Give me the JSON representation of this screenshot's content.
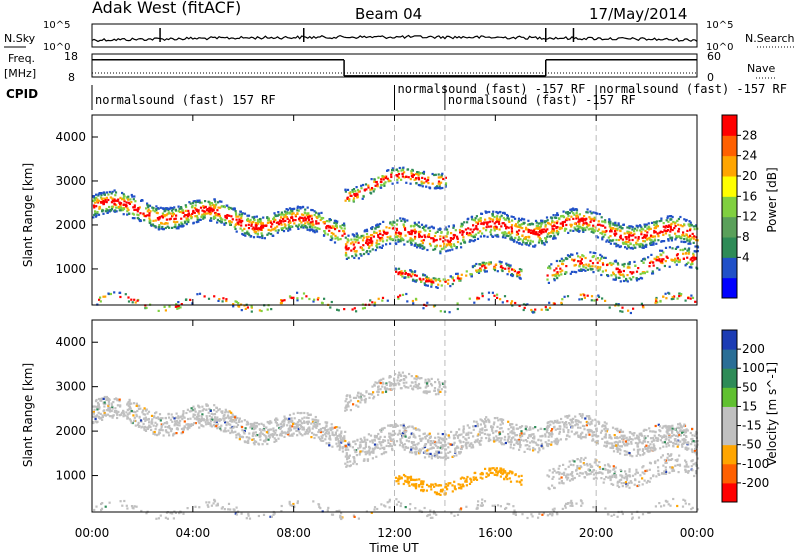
{
  "header": {
    "title": "Adak West (fitACF)",
    "beam": "Beam 04",
    "date": "17/May/2014"
  },
  "chart_data": [
    {
      "type": "line",
      "name": "noise",
      "left_label": "N.Sky",
      "right_label": "N.Search",
      "ticks_left": [
        "10^5",
        "10^0"
      ],
      "ticks_right": [
        "10^5",
        "10^0"
      ]
    },
    {
      "type": "line",
      "name": "freq-nave",
      "left_label": "Freq.",
      "left_unit": "[MHz]",
      "right_label": "Nave",
      "ticks_left": [
        "18",
        "8"
      ],
      "ticks_right": [
        "60",
        "0"
      ],
      "segments_hours": [
        [
          0,
          10
        ],
        [
          10,
          18
        ],
        [
          18,
          24
        ]
      ],
      "freq_levels": [
        0.75,
        0.05,
        0.75
      ]
    },
    {
      "type": "table",
      "name": "cpid",
      "label": "CPID",
      "entries": [
        {
          "start": 0.0,
          "text": "normalsound (fast) 157 RF"
        },
        {
          "start": 12.0,
          "text": "normalsound (fast) -157 RF"
        },
        {
          "start": 14.0,
          "text": "normalsound (fast) -157 RF"
        },
        {
          "start": 20.0,
          "text": "normalsound (fast) -157 RF"
        }
      ]
    },
    {
      "type": "heatmap",
      "name": "power",
      "ylabel": "Slant Range [km]",
      "yticks": [
        "4000",
        "3000",
        "2000",
        "1000"
      ],
      "ylim": [
        180,
        4500
      ],
      "colorbar_label": "Power [dB]",
      "colorbar_ticks": [
        "28",
        "24",
        "20",
        "16",
        "12",
        "8",
        "4"
      ],
      "colors": [
        "#0000ff",
        "#2050c8",
        "#2e8b57",
        "#5aa05a",
        "#80d040",
        "#ffff00",
        "#ffa500",
        "#ff6000",
        "#ff0000"
      ]
    },
    {
      "type": "heatmap",
      "name": "velocity",
      "ylabel": "Slant Range [km]",
      "yticks": [
        "4000",
        "3000",
        "2000",
        "1000"
      ],
      "ylim": [
        180,
        4500
      ],
      "colorbar_label": "Velocity [m s^-1]",
      "colorbar_ticks": [
        "200",
        "100",
        "50",
        "15",
        "-15",
        "-50",
        "-100",
        "-200"
      ],
      "colors": [
        "#1c3cb4",
        "#2a6e96",
        "#2e8b57",
        "#60c030",
        "#c0c0c0",
        "#c0c0c0",
        "#ffa500",
        "#ff6000",
        "#ff0000"
      ]
    }
  ],
  "xaxis": {
    "label": "Time UT",
    "ticks": [
      "00:00",
      "04:00",
      "08:00",
      "12:00",
      "16:00",
      "20:00",
      "00:00"
    ],
    "hours": [
      0,
      4,
      8,
      12,
      16,
      20,
      24
    ]
  }
}
